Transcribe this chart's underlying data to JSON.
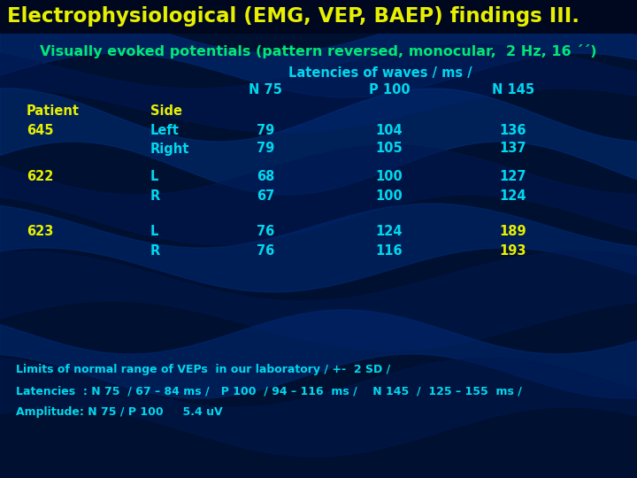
{
  "title": "Electrophysiological (EMG, VEP, BAEP) findings III.",
  "subtitle": "Visually evoked potentials (pattern reversed, monocular,  2 Hz, 16 ´´)",
  "title_color": "#e8f000",
  "subtitle_color": "#00e878",
  "header1": "Latencies of waves / ms /",
  "col_headers": [
    "N 75",
    "P 100",
    "N 145"
  ],
  "col_header_color": "#00d8f0",
  "row_header_color": "#e8f000",
  "cyan": "#00d8f0",
  "yellow": "#e8f000",
  "rows": [
    {
      "patient": "645",
      "side": "Left",
      "n75": "79",
      "p100": "104",
      "n145": "136",
      "patient_color": "#e8f000",
      "side_color": "#00d8f0",
      "n75_color": "#00d8f0",
      "p100_color": "#00d8f0",
      "n145_color": "#00d8f0"
    },
    {
      "patient": "",
      "side": "Right",
      "n75": "79",
      "p100": "105",
      "n145": "137",
      "patient_color": "#e8f000",
      "side_color": "#00d8f0",
      "n75_color": "#00d8f0",
      "p100_color": "#00d8f0",
      "n145_color": "#00d8f0"
    },
    {
      "patient": "622",
      "side": "L",
      "n75": "68",
      "p100": "100",
      "n145": "127",
      "patient_color": "#e8f000",
      "side_color": "#00d8f0",
      "n75_color": "#00d8f0",
      "p100_color": "#00d8f0",
      "n145_color": "#00d8f0"
    },
    {
      "patient": "",
      "side": "R",
      "n75": "67",
      "p100": "100",
      "n145": "124",
      "patient_color": "#e8f000",
      "side_color": "#00d8f0",
      "n75_color": "#00d8f0",
      "p100_color": "#00d8f0",
      "n145_color": "#00d8f0"
    },
    {
      "patient": "623",
      "side": "L",
      "n75": "76",
      "p100": "124",
      "n145": "189",
      "patient_color": "#e8f000",
      "side_color": "#00d8f0",
      "n75_color": "#00d8f0",
      "p100_color": "#00d8f0",
      "n145_color": "#e8f000"
    },
    {
      "patient": "",
      "side": "R",
      "n75": "76",
      "p100": "116",
      "n145": "193",
      "patient_color": "#e8f000",
      "side_color": "#00d8f0",
      "n75_color": "#00d8f0",
      "p100_color": "#00d8f0",
      "n145_color": "#e8f000"
    }
  ],
  "footer_lines": [
    "Limits of normal range of VEPs  in our laboratory / +-  2 SD /",
    "Latencies  : N 75  / 67 – 84 ms /   P 100  / 94 – 116  ms /    N 145  /  125 – 155  ms /",
    "Amplitude: N 75 / P 100     5.4 uV"
  ],
  "footer_color": "#00d8f0",
  "bg_dark": "#001030",
  "bg_mid": "#002060",
  "title_bar_color": "#000820"
}
